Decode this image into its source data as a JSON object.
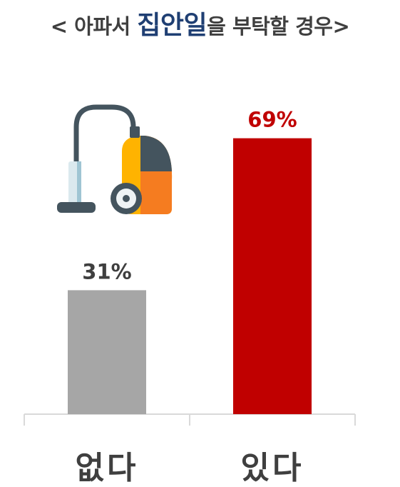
{
  "title": {
    "prefix": "< 아파서 ",
    "highlight": "집안일",
    "suffix": "을 부탁할 경우>"
  },
  "colors": {
    "highlight": "#1f3f73",
    "series": [
      "#a6a6a6",
      "#c00000"
    ],
    "label_colors": [
      "#3f3f3f",
      "#c00000"
    ],
    "axis": "#d9d9d9",
    "icon": "vacuum-cleaner-icon"
  },
  "chart_data": {
    "type": "bar",
    "title": "< 아파서 집안일을 부탁할 경우>",
    "categories": [
      "없다",
      "있다"
    ],
    "values": [
      31,
      69
    ],
    "value_labels": [
      "31%",
      "69%"
    ],
    "ylim": [
      0,
      100
    ],
    "grid": false,
    "xlabel": "",
    "ylabel": ""
  }
}
